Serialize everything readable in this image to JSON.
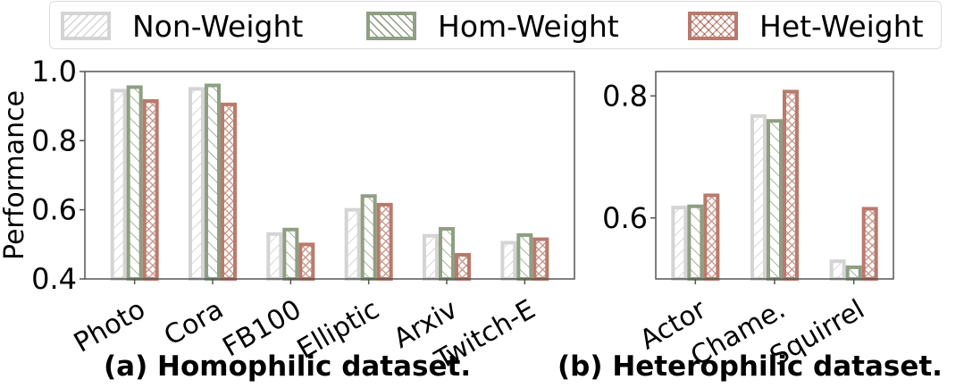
{
  "legend": {
    "items": [
      {
        "key": "non",
        "label": "Non-Weight"
      },
      {
        "key": "hom",
        "label": "Hom-Weight"
      },
      {
        "key": "het",
        "label": "Het-Weight"
      }
    ]
  },
  "colors": {
    "non_edge": "#d4d4d4",
    "non_hatch": "#d6d6d6",
    "hom_edge": "#8e9f82",
    "hom_hatch": "#8e9f82",
    "het_edge": "#b97a6c",
    "het_hatch": "#c89a8f",
    "axis": "#555555"
  },
  "chart_data": [
    {
      "type": "bar",
      "title": "(a) Homophilic dataset.",
      "ylabel": "Performance",
      "xlabel": "",
      "ylim": [
        0.4,
        1.0
      ],
      "yticks": [
        0.4,
        0.6,
        0.8,
        1.0
      ],
      "ytick_labels": [
        "0.4",
        "0.6",
        "0.8",
        "1.0"
      ],
      "categories": [
        "Photo",
        "Cora",
        "FB100",
        "Elliptic",
        "Arxiv",
        "Twitch-E"
      ],
      "series": [
        {
          "name": "Non-Weight",
          "values": [
            0.95,
            0.955,
            0.535,
            0.605,
            0.53,
            0.51
          ]
        },
        {
          "name": "Hom-Weight",
          "values": [
            0.96,
            0.965,
            0.548,
            0.645,
            0.55,
            0.532
          ]
        },
        {
          "name": "Het-Weight",
          "values": [
            0.92,
            0.91,
            0.505,
            0.62,
            0.475,
            0.52
          ]
        }
      ]
    },
    {
      "type": "bar",
      "title": "(b) Heterophilic dataset.",
      "ylabel": "",
      "xlabel": "",
      "ylim": [
        0.5,
        0.84
      ],
      "yticks": [
        0.6,
        0.8
      ],
      "ytick_labels": [
        "0.6",
        "0.8"
      ],
      "categories": [
        "Actor",
        "Chame.",
        "Squirrel"
      ],
      "series": [
        {
          "name": "Non-Weight",
          "values": [
            0.62,
            0.77,
            0.532
          ]
        },
        {
          "name": "Hom-Weight",
          "values": [
            0.622,
            0.762,
            0.522
          ]
        },
        {
          "name": "Het-Weight",
          "values": [
            0.64,
            0.81,
            0.618
          ]
        }
      ]
    }
  ]
}
